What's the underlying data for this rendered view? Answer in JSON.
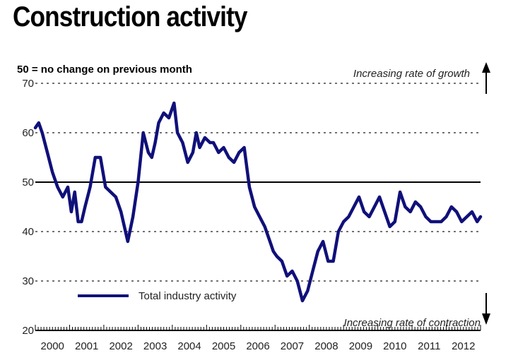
{
  "chart_data": {
    "type": "line",
    "title": "Construction activity",
    "subtitle": "50 = no change on previous month",
    "xlabel": "",
    "ylabel": "",
    "ylim": [
      20,
      70
    ],
    "yticks": [
      20,
      30,
      40,
      50,
      60,
      70
    ],
    "xticks": [
      "2000",
      "2001",
      "2002",
      "2003",
      "2004",
      "2005",
      "2006",
      "2007",
      "2008",
      "2009",
      "2010",
      "2011",
      "2012"
    ],
    "reference_line": 50,
    "grid": "dotted horizontal",
    "legend_position": "bottom-left",
    "annotations": {
      "top": "Increasing rate of growth",
      "bottom": "Increasing rate of contraction"
    },
    "series_color": "#10107a",
    "series": [
      {
        "name": "Total industry activity",
        "x": [
          2000.0,
          2000.1,
          2000.2,
          2000.35,
          2000.5,
          2000.65,
          2000.8,
          2000.95,
          2001.05,
          2001.15,
          2001.25,
          2001.35,
          2001.45,
          2001.6,
          2001.75,
          2001.9,
          2002.05,
          2002.2,
          2002.35,
          2002.5,
          2002.6,
          2002.7,
          2002.85,
          2003.0,
          2003.15,
          2003.3,
          2003.4,
          2003.5,
          2003.6,
          2003.75,
          2003.9,
          2004.05,
          2004.15,
          2004.3,
          2004.45,
          2004.6,
          2004.7,
          2004.8,
          2004.95,
          2005.1,
          2005.2,
          2005.35,
          2005.5,
          2005.65,
          2005.8,
          2005.95,
          2006.1,
          2006.25,
          2006.4,
          2006.55,
          2006.7,
          2006.85,
          2006.95,
          2007.05,
          2007.2,
          2007.35,
          2007.5,
          2007.65,
          2007.8,
          2007.95,
          2008.1,
          2008.25,
          2008.4,
          2008.55,
          2008.7,
          2008.85,
          2009.0,
          2009.15,
          2009.3,
          2009.45,
          2009.6,
          2009.75,
          2009.9,
          2010.05,
          2010.2,
          2010.35,
          2010.5,
          2010.65,
          2010.8,
          2010.95,
          2011.1,
          2011.25,
          2011.4,
          2011.55,
          2011.7,
          2011.85,
          2012.0,
          2012.15,
          2012.3,
          2012.45,
          2012.6,
          2012.75,
          2012.9,
          2013.0
        ],
        "values": [
          61,
          62,
          60,
          56,
          52,
          49,
          47,
          49,
          44,
          48,
          42,
          42,
          45,
          49,
          55,
          55,
          49,
          48,
          47,
          44,
          41,
          38,
          43,
          50,
          60,
          56,
          55,
          58,
          62,
          64,
          63,
          66,
          60,
          58,
          54,
          56,
          60,
          57,
          59,
          58,
          58,
          56,
          57,
          55,
          54,
          56,
          57,
          49,
          45,
          43,
          41,
          38,
          36,
          35,
          34,
          31,
          32,
          30,
          26,
          28,
          32,
          36,
          38,
          34,
          34,
          40,
          42,
          43,
          45,
          47,
          44,
          43,
          45,
          47,
          44,
          41,
          42,
          48,
          45,
          44,
          46,
          45,
          43,
          42,
          42,
          42,
          43,
          45,
          44,
          42,
          43,
          44,
          42,
          43
        ]
      }
    ]
  }
}
